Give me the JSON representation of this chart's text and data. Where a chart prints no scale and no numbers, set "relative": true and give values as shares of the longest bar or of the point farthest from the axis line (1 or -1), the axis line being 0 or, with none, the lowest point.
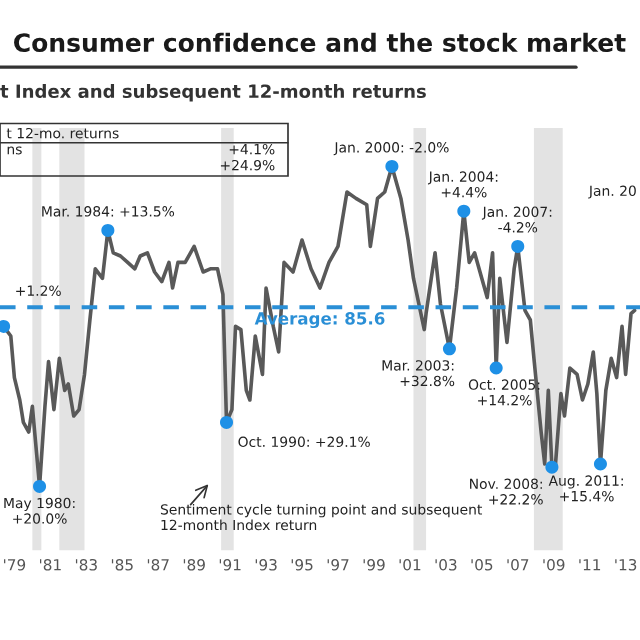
{
  "chart_data": {
    "type": "line",
    "title": "Consumer confidence and the stock market",
    "subtitle": "t Index and subsequent 12-month returns",
    "relative": true,
    "xlim": [
      1978.2,
      2013.8
    ],
    "xticks": [
      {
        "value": 1979,
        "label": "'79"
      },
      {
        "value": 1981,
        "label": "'81"
      },
      {
        "value": 1983,
        "label": "'83"
      },
      {
        "value": 1985,
        "label": "'85"
      },
      {
        "value": 1987,
        "label": "'87"
      },
      {
        "value": 1989,
        "label": "'89"
      },
      {
        "value": 1991,
        "label": "'91"
      },
      {
        "value": 1993,
        "label": "'93"
      },
      {
        "value": 1995,
        "label": "'95"
      },
      {
        "value": 1997,
        "label": "'97"
      },
      {
        "value": 1999,
        "label": "'99"
      },
      {
        "value": 2001,
        "label": "'01"
      },
      {
        "value": 2003,
        "label": "'03"
      },
      {
        "value": 2005,
        "label": "'05"
      },
      {
        "value": 2007,
        "label": "'07"
      },
      {
        "value": 2009,
        "label": "'09"
      },
      {
        "value": 2011,
        "label": "'11"
      },
      {
        "value": 2013,
        "label": "'13"
      }
    ],
    "tick_labels": "x",
    "series": [
      {
        "type": "line",
        "color": "#595959",
        "x": [
          1978.4,
          1978.8,
          1979.0,
          1979.3,
          1979.5,
          1979.8,
          1980.0,
          1980.4,
          1980.7,
          1980.9,
          1981.2,
          1981.5,
          1981.8,
          1982.0,
          1982.3,
          1982.6,
          1982.9,
          1983.2,
          1983.5,
          1983.9,
          1984.2,
          1984.5,
          1984.9,
          1985.3,
          1985.7,
          1986.0,
          1986.4,
          1986.8,
          1987.2,
          1987.6,
          1987.8,
          1988.1,
          1988.5,
          1989.0,
          1989.5,
          1989.9,
          1990.3,
          1990.6,
          1990.8,
          1991.1,
          1991.3,
          1991.6,
          1991.9,
          1992.1,
          1992.4,
          1992.8,
          1993.0,
          1993.4,
          1993.7,
          1994.0,
          1994.5,
          1995.0,
          1995.5,
          1996.0,
          1996.5,
          1997.0,
          1997.5,
          1998.0,
          1998.6,
          1998.8,
          1999.2,
          1999.6,
          2000.0,
          2000.5,
          2000.9,
          2001.2,
          2001.8,
          2001.9,
          2002.4,
          2002.7,
          2003.2,
          2003.6,
          2004.0,
          2004.3,
          2004.6,
          2004.9,
          2005.3,
          2005.6,
          2005.8,
          2006.0,
          2006.4,
          2006.8,
          2007.0,
          2007.4,
          2007.7,
          2007.9,
          2008.3,
          2008.5,
          2008.7,
          2008.9,
          2009.1,
          2009.4,
          2009.6,
          2009.9,
          2010.3,
          2010.6,
          2010.9,
          2011.2,
          2011.4,
          2011.6,
          2011.9,
          2012.2,
          2012.5,
          2012.8,
          2013.0,
          2013.3,
          2013.5
        ],
        "values": [
          0.5,
          0.47,
          0.34,
          0.27,
          0.2,
          0.17,
          0.25,
          0,
          0.25,
          0.39,
          0.24,
          0.4,
          0.3,
          0.32,
          0.22,
          0.24,
          0.35,
          0.52,
          0.68,
          0.65,
          0.8,
          0.73,
          0.72,
          0.7,
          0.68,
          0.72,
          0.73,
          0.67,
          0.64,
          0.7,
          0.62,
          0.7,
          0.7,
          0.75,
          0.67,
          0.68,
          0.68,
          0.6,
          0.2,
          0.24,
          0.5,
          0.49,
          0.3,
          0.27,
          0.47,
          0.35,
          0.62,
          0.5,
          0.42,
          0.7,
          0.67,
          0.77,
          0.68,
          0.62,
          0.7,
          0.75,
          0.92,
          0.9,
          0.88,
          0.75,
          0.9,
          0.92,
          1,
          0.9,
          0.77,
          0.65,
          0.49,
          0.54,
          0.73,
          0.57,
          0.43,
          0.62,
          0.86,
          0.7,
          0.73,
          0.67,
          0.59,
          0.73,
          0.37,
          0.65,
          0.45,
          0.68,
          0.75,
          0.55,
          0.52,
          0.4,
          0.17,
          0.07,
          0.3,
          0.06,
          0.07,
          0.29,
          0.22,
          0.37,
          0.35,
          0.27,
          0.32,
          0.42,
          0.29,
          0.07,
          0.3,
          0.4,
          0.34,
          0.5,
          0.35,
          0.54,
          0.55
        ]
      },
      {
        "type": "scatter",
        "color": "#1e90e6",
        "marker": "circle",
        "x": [
          1978.4,
          1980.4,
          1984.2,
          1990.8,
          2000.0,
          2003.2,
          2004.0,
          2005.8,
          2007.0,
          2008.9,
          2011.6
        ],
        "values": [
          0.5,
          0,
          0.8,
          0.2,
          1,
          0.43,
          0.86,
          0.37,
          0.75,
          0.06,
          0.07
        ]
      }
    ],
    "ref_lines": [
      {
        "axis": "y",
        "value": 0.56,
        "color": "#2a8fd6",
        "line_style": "dashed"
      }
    ],
    "bands": [
      {
        "axis": "x",
        "from": 1980.0,
        "to": 1980.5,
        "color": "#e3e3e3"
      },
      {
        "axis": "x",
        "from": 1981.5,
        "to": 1982.9,
        "color": "#e3e3e3"
      },
      {
        "axis": "x",
        "from": 1990.5,
        "to": 1991.2,
        "color": "#e3e3e3"
      },
      {
        "axis": "x",
        "from": 2001.2,
        "to": 2001.9,
        "color": "#e3e3e3"
      },
      {
        "axis": "x",
        "from": 2007.9,
        "to": 2009.5,
        "color": "#e3e3e3"
      }
    ],
    "annotations": [
      "t 12-mo. returns",
      "+4.1%",
      "ns",
      "+24.9%",
      "Jan. 20",
      "Average: 85.6",
      "Sentiment cycle turning point and subsequent\n12-month Index return",
      {
        "text": "+1.2%",
        "x": 1978.4,
        "y": 0.5
      },
      {
        "text": "May 1980:\n+20.0%",
        "x": 1980.4,
        "y": 0
      },
      {
        "text": "Mar. 1984: +13.5%",
        "x": 1984.2,
        "y": 0.8
      },
      {
        "text": "Oct. 1990: +29.1%",
        "x": 1990.8,
        "y": 0.2
      },
      {
        "text": "Jan. 2000: -2.0%",
        "x": 2000.0,
        "y": 1
      },
      {
        "text": "Mar. 2003:\n+32.8%",
        "x": 2003.2,
        "y": 0.43
      },
      {
        "text": "Jan. 2004:\n+4.4%",
        "x": 2004.0,
        "y": 0.86
      },
      {
        "text": "Oct. 2005:\n+14.2%",
        "x": 2005.8,
        "y": 0.37
      },
      {
        "text": "Jan. 2007:\n-4.2%",
        "x": 2007.0,
        "y": 0.75
      },
      {
        "text": "Nov. 2008:\n+22.2%",
        "x": 2008.9,
        "y": 0.06
      },
      {
        "text": "Aug. 2011:\n+15.4%",
        "x": 2011.6,
        "y": 0.07
      }
    ]
  }
}
